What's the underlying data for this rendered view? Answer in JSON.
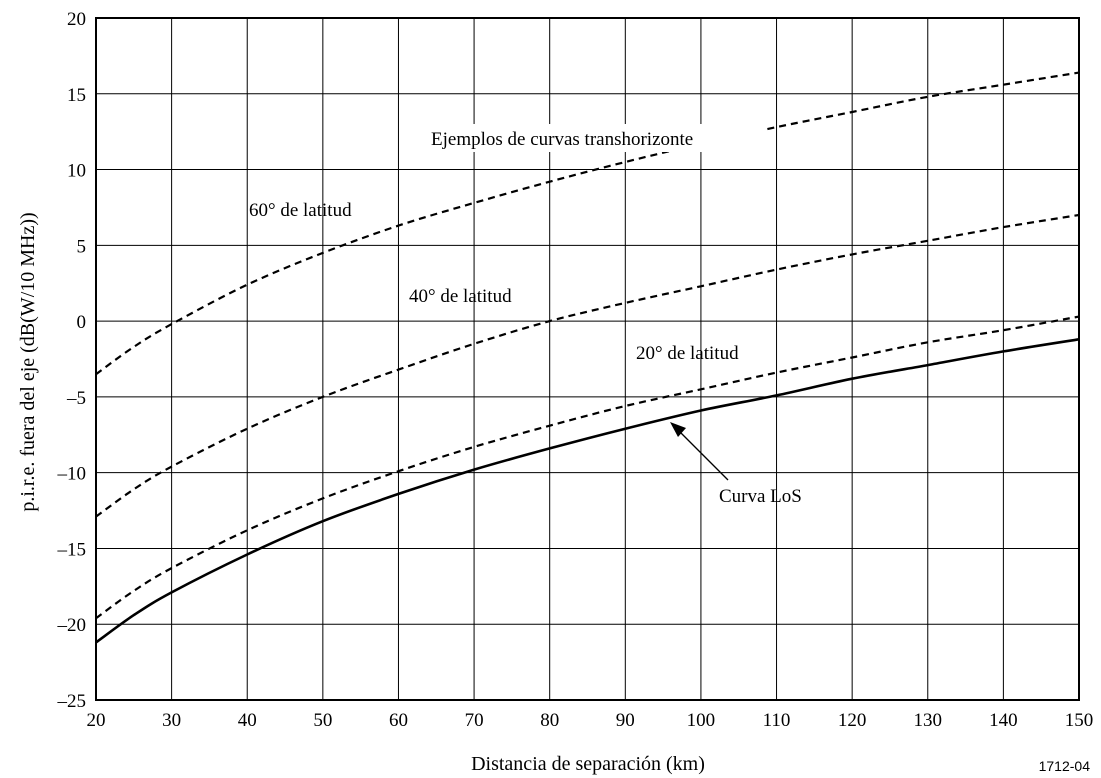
{
  "chart_data": {
    "type": "line",
    "xlabel": "Distancia de separación (km)",
    "ylabel": "p.i.r.e. fuera del eje (dB(W/10 MHz))",
    "xlim": [
      20,
      150
    ],
    "ylim": [
      -25,
      20
    ],
    "xticks": [
      20,
      30,
      40,
      50,
      60,
      70,
      80,
      90,
      100,
      110,
      120,
      130,
      140,
      150
    ],
    "yticks": [
      20,
      15,
      10,
      5,
      0,
      -5,
      -10,
      -15,
      -20,
      -25
    ],
    "ytick_labels": [
      "20",
      "15",
      "10",
      "5",
      "0",
      "–5",
      "–10",
      "–15",
      "–20",
      "–25"
    ],
    "grid": true,
    "series": [
      {
        "name": "60° de latitud",
        "style": "dashed",
        "x": [
          20,
          25,
          30,
          40,
          50,
          60,
          70,
          80,
          90,
          100,
          110,
          120,
          130,
          140,
          150
        ],
        "y": [
          -3.5,
          -1.7,
          -0.2,
          2.4,
          4.5,
          6.3,
          7.8,
          9.2,
          10.5,
          11.7,
          12.8,
          13.8,
          14.8,
          15.6,
          16.4
        ]
      },
      {
        "name": "40° de latitud",
        "style": "dashed",
        "x": [
          20,
          25,
          30,
          40,
          50,
          60,
          70,
          80,
          90,
          100,
          110,
          120,
          130,
          140,
          150
        ],
        "y": [
          -12.9,
          -11.1,
          -9.6,
          -7.1,
          -5.0,
          -3.2,
          -1.5,
          0.0,
          1.2,
          2.3,
          3.4,
          4.4,
          5.3,
          6.2,
          7.0
        ]
      },
      {
        "name": "20° de latitud",
        "style": "dashed",
        "x": [
          20,
          25,
          30,
          40,
          50,
          60,
          70,
          80,
          90,
          100,
          110,
          120,
          130,
          140,
          150
        ],
        "y": [
          -19.6,
          -17.8,
          -16.3,
          -13.8,
          -11.7,
          -9.9,
          -8.3,
          -6.9,
          -5.6,
          -4.5,
          -3.4,
          -2.4,
          -1.4,
          -0.6,
          0.3
        ]
      },
      {
        "name": "Curva LoS",
        "style": "solid",
        "x": [
          20,
          25,
          30,
          40,
          50,
          60,
          70,
          80,
          90,
          100,
          110,
          120,
          130,
          140,
          150
        ],
        "y": [
          -21.2,
          -19.4,
          -17.9,
          -15.4,
          -13.2,
          -11.4,
          -9.8,
          -8.4,
          -7.1,
          -5.9,
          -4.9,
          -3.8,
          -2.9,
          -2.0,
          -1.2
        ]
      }
    ],
    "annotations": {
      "transhorizon": "Ejemplos de curvas transhorizonte",
      "lat60": "60° de latitud",
      "lat40": "40° de latitud",
      "lat20": "20° de latitud",
      "los": "Curva LoS"
    },
    "figure_id": "1712-04"
  }
}
